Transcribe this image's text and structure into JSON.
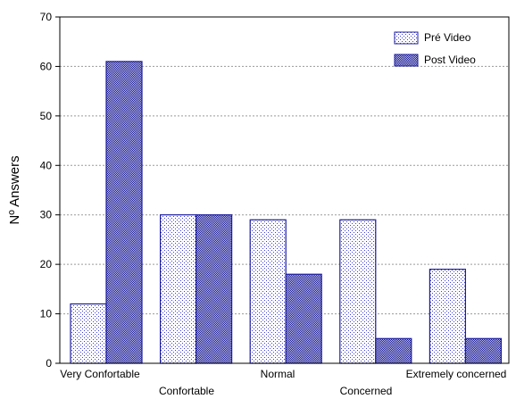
{
  "chart_data": {
    "type": "bar",
    "ylabel": "Nº Answers",
    "xlabel": "",
    "ylim": [
      0,
      70
    ],
    "yticks": [
      0,
      10,
      20,
      30,
      40,
      50,
      60,
      70
    ],
    "grid": true,
    "legend_position": "top-right",
    "categories": [
      "Very Confortable",
      "Confortable",
      "Normal",
      "Concerned",
      "Extremely concerned"
    ],
    "series": [
      {
        "name": "Pré Video",
        "values": [
          12,
          30,
          29,
          29,
          19
        ],
        "pattern": "light-dots",
        "color": "#2b2bd6"
      },
      {
        "name": "Post Video",
        "values": [
          61,
          30,
          18,
          5,
          5
        ],
        "pattern": "dense-checker",
        "color": "#1c1c9e"
      }
    ]
  }
}
